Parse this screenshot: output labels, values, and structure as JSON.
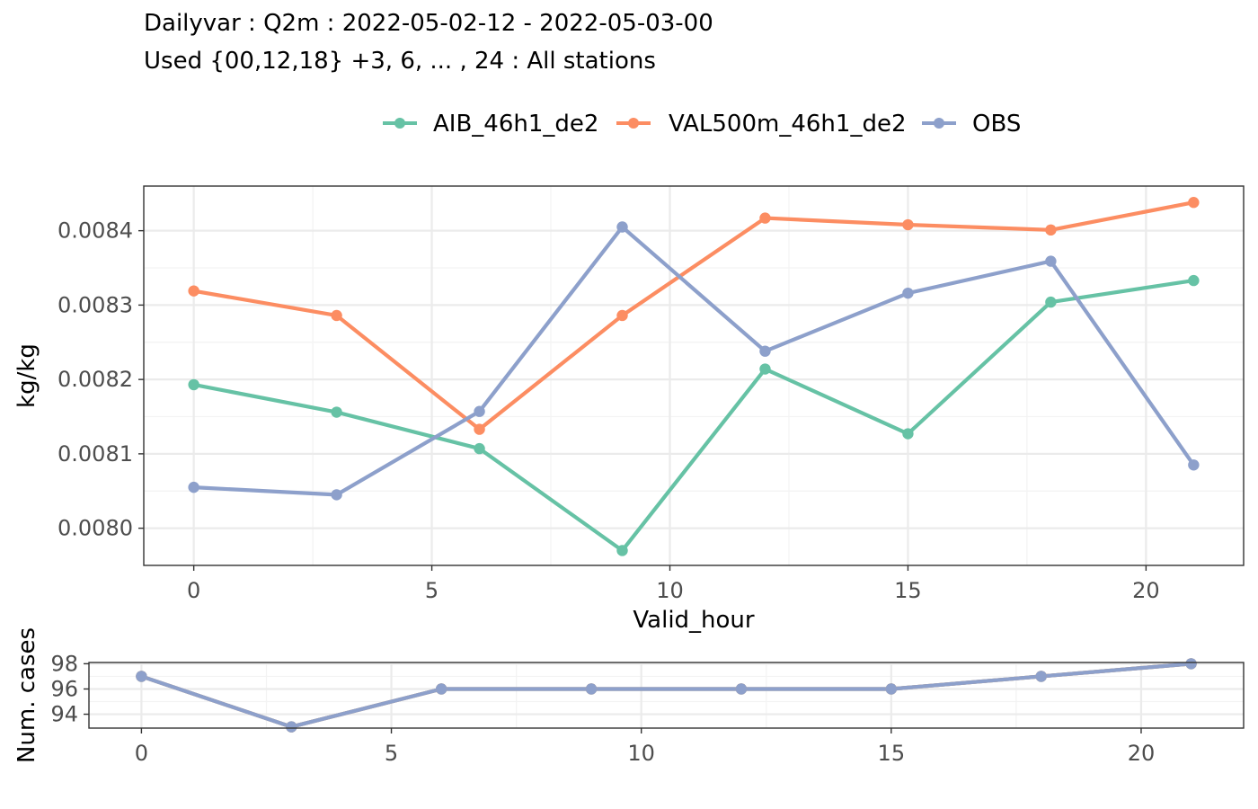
{
  "title": {
    "line1": "Dailyvar : Q2m : 2022-05-02-12 - 2022-05-03-00",
    "line2": "Used {00,12,18} +3, 6, ... , 24 : All stations"
  },
  "chart_data": [
    {
      "type": "line",
      "xlabel": "Valid_hour",
      "ylabel": "kg/kg",
      "xlim": [
        -1.05,
        22.05
      ],
      "ylim": [
        0.00795,
        0.00846
      ],
      "x_ticks": [
        0,
        5,
        10,
        15,
        20
      ],
      "x_tick_labels": [
        "0",
        "5",
        "10",
        "15",
        "20"
      ],
      "y_ticks": [
        0.008,
        0.0081,
        0.0082,
        0.0083,
        0.0084
      ],
      "y_tick_labels": [
        "0.0080",
        "0.0081",
        "0.0082",
        "0.0083",
        "0.0084"
      ],
      "grid": true,
      "legend_position": "top",
      "x": [
        0,
        3,
        6,
        9,
        12,
        15,
        18,
        21
      ],
      "series": [
        {
          "name": "AIB_46h1_de2",
          "color": "#66c2a5",
          "values": [
            0.008193,
            0.008156,
            0.008107,
            0.00797,
            0.008214,
            0.008127,
            0.008304,
            0.008333
          ]
        },
        {
          "name": "VAL500m_46h1_de2",
          "color": "#fc8d62",
          "values": [
            0.008319,
            0.008286,
            0.008133,
            0.008286,
            0.008417,
            0.008408,
            0.008401,
            0.008438
          ]
        },
        {
          "name": "OBS",
          "color": "#8da0cb",
          "values": [
            0.008055,
            0.008045,
            0.008157,
            0.008405,
            0.008238,
            0.008316,
            0.008359,
            0.008085
          ]
        }
      ]
    },
    {
      "type": "line",
      "xlabel": "",
      "ylabel": "Num. cases",
      "xlim": [
        -1.05,
        22.05
      ],
      "ylim": [
        92.9,
        98.1
      ],
      "x_ticks": [
        0,
        5,
        10,
        15,
        20
      ],
      "x_tick_labels": [
        "0",
        "5",
        "10",
        "15",
        "20"
      ],
      "y_ticks": [
        94,
        96,
        98
      ],
      "y_tick_labels": [
        "94",
        "96",
        "98"
      ],
      "grid": true,
      "x": [
        0,
        3,
        6,
        9,
        12,
        15,
        18,
        21
      ],
      "series": [
        {
          "color": "#66c2a5",
          "values": [
            97,
            93,
            96,
            96,
            96,
            96,
            97,
            98
          ]
        },
        {
          "color": "#fc8d62",
          "values": [
            97,
            93,
            96,
            96,
            96,
            96,
            97,
            98
          ]
        },
        {
          "color": "#8da0cb",
          "values": [
            97,
            93,
            96,
            96,
            96,
            96,
            97,
            98
          ]
        }
      ]
    }
  ]
}
